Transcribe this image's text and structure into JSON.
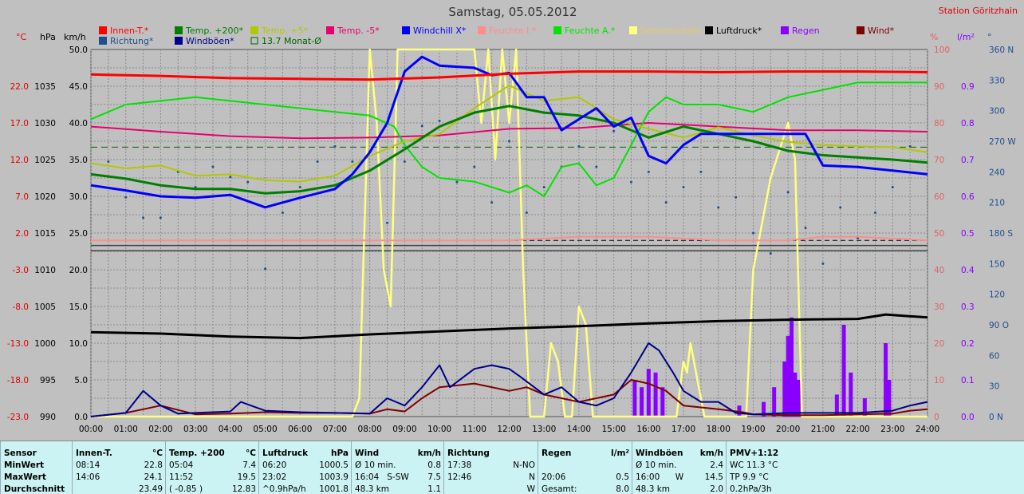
{
  "title": "Samstag, 05.05.2012",
  "station": "Station Göritzhain",
  "colors": {
    "innen": "#ff0000",
    "temp200": "#007f00",
    "temp5": "#b2c800",
    "tempm5": "#e8006e",
    "windchill": "#0000ff",
    "feuchte_i": "#ff8c8c",
    "feuchte_a": "#00e400",
    "sonne": "#ffff80",
    "luftdruck": "#000000",
    "regen": "#8a00ff",
    "wind": "#7f0000",
    "richtung": "#1f4f8f",
    "windboeen": "#00008b",
    "monat": "#006400"
  },
  "legend": [
    {
      "label": "Innen-T.*",
      "color": "#ff0000"
    },
    {
      "label": "Temp. +200*",
      "color": "#007f00"
    },
    {
      "label": "Temp. +5*",
      "color": "#b2c800"
    },
    {
      "label": "Temp. -5*",
      "color": "#e8006e"
    },
    {
      "label": "Windchill X*",
      "color": "#0000ff"
    },
    {
      "label": "Feuchte I.*",
      "color": "#ff8c8c"
    },
    {
      "label": "Feuchte A.*",
      "color": "#00e400"
    },
    {
      "label": "Sonnenschein",
      "color": "#ffff80"
    },
    {
      "label": "Luftdruck*",
      "color": "#000000"
    },
    {
      "label": "Regen",
      "color": "#8a00ff"
    },
    {
      "label": "Wind*",
      "color": "#7f0000"
    },
    {
      "label": "Richtung*",
      "color": "#1f4f8f"
    },
    {
      "label": "Windböen*",
      "color": "#00008b"
    },
    {
      "label": "13.7 Monat-Ø",
      "color": "#006400"
    }
  ],
  "chart_data": {
    "type": "line",
    "title": "Samstag, 05.05.2012",
    "x_ticks": [
      "00:00",
      "01:00",
      "02:00",
      "03:00",
      "04:00",
      "05:00",
      "06:00",
      "07:00",
      "08:00",
      "09:00",
      "10:00",
      "11:00",
      "12:00",
      "13:00",
      "14:00",
      "15:00",
      "16:00",
      "17:00",
      "18:00",
      "19:00",
      "20:00",
      "21:00",
      "22:00",
      "23:00",
      "24:00"
    ],
    "x_range": [
      0,
      24
    ],
    "axes": {
      "temp": {
        "unit": "°C",
        "range": [
          -23.0,
          27.0
        ],
        "ticks": [
          "22.0",
          "17.0",
          "12.0",
          "7.0",
          "2.0",
          "-3.0",
          "-8.0",
          "-13.0",
          "-18.0",
          "-23.0"
        ]
      },
      "pressure": {
        "unit": "hPa",
        "range": [
          990,
          1040
        ],
        "ticks": [
          "1035",
          "1030",
          "1025",
          "1020",
          "1015",
          "1010",
          "1005",
          "1000",
          "995",
          "990"
        ]
      },
      "wind": {
        "unit": "km/h",
        "range": [
          0,
          50
        ],
        "ticks": [
          "50.0",
          "45.0",
          "40.0",
          "35.0",
          "30.0",
          "25.0",
          "20.0",
          "15.0",
          "10.0",
          "5.0",
          "0.0"
        ]
      },
      "humidity": {
        "unit": "%",
        "range": [
          0,
          100
        ],
        "ticks": [
          "100",
          "90",
          "80",
          "70",
          "60",
          "50",
          "40",
          "30",
          "20",
          "10",
          "0"
        ]
      },
      "rain": {
        "unit": "l/m²",
        "range": [
          0,
          1.0
        ],
        "ticks": [
          "0.9",
          "0.8",
          "0.7",
          "0.6",
          "0.5",
          "0.4",
          "0.3",
          "0.2",
          "0.1",
          "0.0"
        ]
      },
      "direction": {
        "unit": "°",
        "range": [
          0,
          360
        ],
        "ticks": [
          "360 N",
          "330",
          "300",
          "270 W",
          "240",
          "210",
          "180 S",
          "150",
          "120",
          "90 O",
          "60",
          "30",
          "0 N"
        ]
      }
    },
    "monat_avg_temp": 13.7,
    "series": [
      {
        "name": "Innen-T.*",
        "axis": "temp",
        "x": [
          0,
          2,
          4,
          6,
          8,
          10,
          12,
          14,
          16,
          18,
          20,
          22,
          24
        ],
        "values": [
          23.6,
          23.4,
          23.1,
          23.0,
          22.9,
          23.2,
          23.7,
          24.0,
          24.0,
          23.9,
          24.0,
          24.0,
          23.9
        ]
      },
      {
        "name": "Temp. +200*",
        "axis": "temp",
        "x": [
          0,
          1,
          2,
          3,
          4,
          5,
          6,
          7,
          8,
          9,
          10,
          11,
          12,
          13,
          14,
          15,
          16,
          17,
          18,
          19,
          20,
          21,
          22,
          23,
          24
        ],
        "values": [
          10.0,
          9.4,
          8.5,
          8.0,
          8.0,
          7.4,
          7.7,
          8.5,
          10.5,
          13.4,
          16.5,
          18.4,
          19.3,
          18.4,
          18.0,
          17.0,
          15.0,
          16.5,
          15.5,
          14.5,
          13.2,
          12.6,
          12.3,
          12.0,
          11.6
        ]
      },
      {
        "name": "Temp. +5*",
        "axis": "temp",
        "x": [
          0,
          1,
          2,
          3,
          4,
          5,
          6,
          7,
          8,
          9,
          10,
          11,
          12,
          13,
          14,
          15,
          16,
          17,
          18,
          19,
          20,
          21,
          22,
          23,
          24
        ],
        "values": [
          11.5,
          10.8,
          11.2,
          9.8,
          10.0,
          9.2,
          9.0,
          9.8,
          12.5,
          14.5,
          15.5,
          19.0,
          22.1,
          20.0,
          20.5,
          17.5,
          16.2,
          15.0,
          16.4,
          15.3,
          14.4,
          14.0,
          13.8,
          13.7,
          13.0
        ]
      },
      {
        "name": "Temp. -5*",
        "axis": "temp",
        "x": [
          0,
          2,
          4,
          6,
          8,
          10,
          12,
          14,
          16,
          18,
          20,
          22,
          24
        ],
        "values": [
          16.5,
          15.8,
          15.2,
          14.9,
          15.0,
          15.3,
          16.2,
          16.3,
          17.0,
          16.5,
          16.0,
          16.0,
          15.8
        ]
      },
      {
        "name": "Windchill X*",
        "axis": "temp",
        "x": [
          0,
          1,
          2,
          3,
          4,
          5,
          6,
          7,
          7.5,
          8,
          8.5,
          9,
          9.5,
          10,
          11,
          11.5,
          12,
          12.5,
          13,
          13.5,
          14,
          14.5,
          15,
          15.5,
          16,
          16.5,
          17,
          17.5,
          18,
          19,
          20,
          20.5,
          21,
          22,
          23,
          24
        ],
        "values": [
          8.5,
          7.8,
          7.0,
          6.8,
          7.2,
          5.5,
          6.8,
          8.0,
          10.0,
          13.0,
          17.0,
          24.0,
          26.0,
          24.8,
          24.5,
          23.5,
          23.8,
          20.5,
          20.5,
          16.0,
          17.5,
          19.0,
          16.5,
          17.7,
          12.5,
          11.5,
          14.0,
          15.5,
          15.5,
          15.5,
          15.5,
          15.5,
          11.2,
          11.0,
          10.5,
          10.0
        ]
      },
      {
        "name": "Feuchte I.*",
        "axis": "humidity",
        "x": [
          0,
          4,
          8,
          12,
          14,
          16,
          18,
          20,
          21,
          22,
          24
        ],
        "values": [
          48,
          48,
          48,
          48,
          49,
          49,
          48,
          48,
          49,
          49,
          48
        ]
      },
      {
        "name": "Feuchte A.*",
        "axis": "humidity",
        "x": [
          0,
          1,
          2,
          3,
          4,
          5,
          6,
          7,
          8,
          8.7,
          9,
          9.5,
          10,
          11,
          12,
          12.5,
          13,
          13.5,
          14,
          14.5,
          15,
          16,
          16.5,
          17,
          18,
          19,
          20,
          21,
          22,
          23,
          24
        ],
        "values": [
          81,
          85,
          86,
          87,
          86,
          85,
          84,
          83,
          82,
          79,
          74,
          68,
          65,
          64,
          61,
          63,
          60,
          68,
          69,
          63,
          65,
          83,
          87,
          85,
          85,
          83,
          87,
          89,
          91,
          91,
          91
        ]
      },
      {
        "name": "Sonnenschein",
        "axis": "humidity",
        "x": [
          0,
          7.5,
          7.7,
          8,
          8.2,
          8.4,
          8.6,
          8.8,
          9,
          10,
          11,
          11.2,
          11.4,
          11.6,
          11.8,
          12,
          12.2,
          12.4,
          12.6,
          12.9,
          13,
          13.2,
          13.4,
          13.6,
          13.8,
          14,
          14.2,
          14.4,
          14.7,
          15,
          16,
          16.8,
          17,
          17.1,
          17.2,
          17.4,
          17.6,
          18,
          18.8,
          19,
          19.5,
          20,
          20.2,
          20.4,
          20.6,
          20.8,
          21,
          22,
          24
        ],
        "values": [
          0,
          0,
          5,
          100,
          80,
          40,
          30,
          100,
          100,
          100,
          100,
          80,
          100,
          70,
          100,
          80,
          100,
          40,
          0,
          0,
          0,
          20,
          15,
          0,
          0,
          30,
          25,
          0,
          0,
          0,
          0,
          0,
          15,
          12,
          20,
          10,
          0,
          0,
          0,
          40,
          65,
          80,
          70,
          0,
          0,
          0,
          0,
          0,
          0
        ]
      },
      {
        "name": "Luftdruck*",
        "axis": "pressure",
        "x": [
          0,
          2,
          4,
          6,
          8,
          10,
          12,
          14,
          16,
          18,
          20,
          22,
          22.8,
          24
        ],
        "values": [
          1001.5,
          1001.3,
          1000.9,
          1000.7,
          1001.2,
          1001.6,
          1002.0,
          1002.3,
          1002.7,
          1003.0,
          1003.2,
          1003.3,
          1003.9,
          1003.5
        ]
      },
      {
        "name": "Wind*",
        "axis": "wind",
        "x": [
          0,
          1,
          1.5,
          2,
          3,
          4,
          5,
          6,
          7,
          8,
          8.5,
          9,
          9.5,
          10,
          11,
          12,
          12.5,
          13,
          14,
          14.5,
          15,
          15.5,
          16,
          16.5,
          17,
          18,
          18.7,
          19,
          20,
          21,
          22,
          23,
          23.5,
          24
        ],
        "values": [
          0,
          0.5,
          1.0,
          1.5,
          0.3,
          0.4,
          0.6,
          0.5,
          0.5,
          0.4,
          1.0,
          0.7,
          2.5,
          4.0,
          4.5,
          3.5,
          4.0,
          3.0,
          2.0,
          2.5,
          3.0,
          5.0,
          4.5,
          3.5,
          1.5,
          1.0,
          0.6,
          0.3,
          0.2,
          0.2,
          0.3,
          0.4,
          0.8,
          1.0
        ]
      },
      {
        "name": "Windböen*",
        "axis": "wind",
        "x": [
          0,
          1,
          1.5,
          2,
          2.5,
          3,
          4,
          4.3,
          5,
          6,
          7,
          8,
          8.5,
          9,
          9.5,
          10,
          10.3,
          11,
          11.5,
          12,
          12.3,
          13,
          13.5,
          14,
          14.5,
          15,
          15.5,
          16,
          16.3,
          16.7,
          17,
          17.5,
          18,
          18.5,
          19,
          20,
          21,
          22,
          23,
          23.5,
          24
        ],
        "values": [
          0,
          0.5,
          3.5,
          1.5,
          0.4,
          0.5,
          0.7,
          2.0,
          0.8,
          0.6,
          0.5,
          0.4,
          2.5,
          1.5,
          4.0,
          7.0,
          4.0,
          6.5,
          7.0,
          6.5,
          5.5,
          3.0,
          4.0,
          2.0,
          1.5,
          2.5,
          6.0,
          10.0,
          9.0,
          6.0,
          3.5,
          2.0,
          2.0,
          0.5,
          0.3,
          0.5,
          0.5,
          0.5,
          0.8,
          1.5,
          2.0
        ]
      },
      {
        "name": "Regen",
        "axis": "rain",
        "x": [
          15.6,
          15.8,
          16,
          16.2,
          16.4,
          18.6,
          19.3,
          19.6,
          19.9,
          20.0,
          20.1,
          20.2,
          20.3,
          21.4,
          21.6,
          21.8,
          22.2,
          22.8,
          22.9
        ],
        "values": [
          0.1,
          0.08,
          0.13,
          0.12,
          0.08,
          0.03,
          0.04,
          0.08,
          0.15,
          0.22,
          0.27,
          0.12,
          0.1,
          0.06,
          0.25,
          0.12,
          0.05,
          0.2,
          0.1
        ]
      },
      {
        "name": "Richtung*",
        "axis": "direction",
        "x": [
          0.5,
          1,
          1.5,
          2,
          2.5,
          3,
          3.5,
          4,
          4.5,
          5,
          5.5,
          6,
          6.5,
          7,
          7.5,
          8,
          8.5,
          9,
          9.5,
          10,
          10.5,
          11,
          11.5,
          12,
          12.5,
          13,
          13.5,
          14,
          14.5,
          15,
          15.5,
          16,
          16.5,
          17,
          17.5,
          18,
          18.5,
          19,
          19.5,
          20,
          20.5,
          21,
          21.5,
          22,
          22.5,
          23,
          23.5
        ],
        "values": [
          250,
          215,
          195,
          195,
          240,
          225,
          245,
          235,
          230,
          145,
          200,
          225,
          250,
          265,
          250,
          260,
          190,
          250,
          285,
          290,
          230,
          245,
          210,
          270,
          200,
          225,
          245,
          265,
          245,
          280,
          230,
          240,
          210,
          225,
          240,
          205,
          215,
          180,
          160,
          220,
          185,
          150,
          205,
          175,
          200,
          225,
          265
        ]
      }
    ]
  },
  "stats": [
    {
      "title_l": "Sensor",
      "title_r": "",
      "rows": [
        [
          "MinWert",
          "",
          ""
        ],
        [
          "MaxWert",
          "",
          ""
        ],
        [
          "Durchschnitt",
          "",
          ""
        ]
      ]
    },
    {
      "title_l": "Innen-T.",
      "title_r": "°C",
      "rows": [
        [
          "08:14",
          "",
          "22.8"
        ],
        [
          "14:06",
          "",
          "24.1"
        ],
        [
          "",
          "",
          "23.49"
        ]
      ]
    },
    {
      "title_l": "Temp. +200",
      "title_r": "°C",
      "rows": [
        [
          "05:04",
          "",
          "7.4"
        ],
        [
          "11:52",
          "",
          "19.5"
        ],
        [
          "( -0.85 )",
          "",
          "12.83"
        ]
      ]
    },
    {
      "title_l": "Luftdruck",
      "title_r": "hPa",
      "rows": [
        [
          "06:20",
          "",
          "1000.5"
        ],
        [
          "23:02",
          "",
          "1003.9"
        ],
        [
          "^0.9hPa/h",
          "",
          "1001.8"
        ]
      ]
    },
    {
      "title_l": "Wind",
      "title_r": "km/h",
      "rows": [
        [
          "Ø 10 min.",
          "",
          "0.8"
        ],
        [
          "16:04",
          "S-SW",
          "7.5"
        ],
        [
          "48.3 km",
          "",
          "1.1"
        ]
      ]
    },
    {
      "title_l": "Richtung",
      "title_r": "",
      "rows": [
        [
          "17:38",
          "",
          "N-NO"
        ],
        [
          "12:46",
          "",
          "N"
        ],
        [
          "",
          "",
          "W"
        ]
      ]
    },
    {
      "title_l": "Regen",
      "title_r": "l/m²",
      "rows": [
        [
          "",
          "",
          ""
        ],
        [
          "20:06",
          "",
          "0.5"
        ],
        [
          "Gesamt:",
          "",
          "8.0"
        ]
      ]
    },
    {
      "title_l": "Windböen",
      "title_r": "km/h",
      "rows": [
        [
          "Ø 10 min.",
          "",
          "2.4"
        ],
        [
          "16:00",
          "W",
          "14.5"
        ],
        [
          "48.3 km",
          "",
          "2.0"
        ]
      ]
    },
    {
      "title_l": "PMV+1:12",
      "title_r": "",
      "rows": [
        [
          "WC 11.3 °C",
          "",
          ""
        ],
        [
          "TP 9.9 °C",
          "",
          ""
        ],
        [
          "0.2hPa/3h",
          "",
          ""
        ]
      ]
    }
  ]
}
